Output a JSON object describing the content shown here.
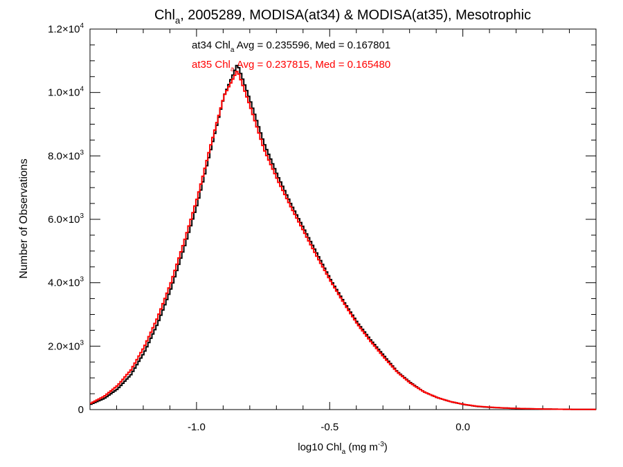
{
  "chart_data": {
    "type": "line",
    "title": {
      "pre": "Chl",
      "sub": "a",
      "post": ", 2005289, MODISA(at34) & MODISA(at35), Mesotrophic"
    },
    "xlabel": {
      "pre": "log10 Chl",
      "sub": "a",
      "mid": " (mg m",
      "sup": "-3",
      "post": ")"
    },
    "ylabel": "Number of Observations",
    "xlim": [
      -1.4,
      0.5
    ],
    "ylim": [
      0,
      12000
    ],
    "x_ticks": [
      {
        "value": -1.0,
        "label": "-1.0"
      },
      {
        "value": -0.5,
        "label": "-0.5"
      },
      {
        "value": 0.0,
        "label": "0.0"
      }
    ],
    "y_ticks": [
      {
        "value": 0,
        "mant": "0",
        "exp": ""
      },
      {
        "value": 2000,
        "mant": "2.0×10",
        "exp": "3"
      },
      {
        "value": 4000,
        "mant": "4.0×10",
        "exp": "3"
      },
      {
        "value": 6000,
        "mant": "6.0×10",
        "exp": "3"
      },
      {
        "value": 8000,
        "mant": "8.0×10",
        "exp": "3"
      },
      {
        "value": 10000,
        "mant": "1.0×10",
        "exp": "4"
      },
      {
        "value": 12000,
        "mant": "1.2×10",
        "exp": "4"
      }
    ],
    "grid": false,
    "series": [
      {
        "name": "at34",
        "color": "#000000",
        "label": {
          "pre": "at34 Chl",
          "sub": "a",
          "post": " Avg = 0.235596, Med = 0.167801"
        },
        "x": [
          -1.4,
          -1.35,
          -1.3,
          -1.25,
          -1.2,
          -1.15,
          -1.1,
          -1.05,
          -1.0,
          -0.95,
          -0.9,
          -0.85,
          -0.8,
          -0.75,
          -0.7,
          -0.65,
          -0.6,
          -0.55,
          -0.5,
          -0.45,
          -0.4,
          -0.35,
          -0.3,
          -0.25,
          -0.2,
          -0.15,
          -0.1,
          -0.05,
          0.0,
          0.05,
          0.1,
          0.15,
          0.2,
          0.25,
          0.3,
          0.35,
          0.4,
          0.45,
          0.5
        ],
        "y": [
          170,
          350,
          650,
          1100,
          1800,
          2700,
          3800,
          5100,
          6500,
          8200,
          9900,
          10900,
          9700,
          8400,
          7400,
          6500,
          5700,
          4900,
          4100,
          3400,
          2750,
          2200,
          1700,
          1200,
          850,
          560,
          380,
          250,
          160,
          100,
          70,
          50,
          35,
          25,
          18,
          12,
          8,
          5,
          3
        ]
      },
      {
        "name": "at35",
        "color": "#ff0000",
        "label": {
          "pre": "at35 Chl",
          "sub": "a",
          "post": " Avg = 0.237815, Med = 0.165480"
        },
        "x": [
          -1.4,
          -1.35,
          -1.3,
          -1.25,
          -1.2,
          -1.15,
          -1.1,
          -1.05,
          -1.0,
          -0.95,
          -0.9,
          -0.85,
          -0.8,
          -0.75,
          -0.7,
          -0.65,
          -0.6,
          -0.55,
          -0.5,
          -0.45,
          -0.4,
          -0.35,
          -0.3,
          -0.25,
          -0.2,
          -0.15,
          -0.1,
          -0.05,
          0.0,
          0.05,
          0.1,
          0.15,
          0.2,
          0.25,
          0.3,
          0.35,
          0.4,
          0.45,
          0.5
        ],
        "y": [
          200,
          420,
          760,
          1250,
          1980,
          2900,
          4000,
          5300,
          6700,
          8350,
          9900,
          10700,
          9500,
          8200,
          7250,
          6400,
          5600,
          4800,
          4050,
          3350,
          2700,
          2150,
          1650,
          1180,
          830,
          560,
          380,
          250,
          165,
          105,
          75,
          52,
          36,
          26,
          18,
          12,
          8,
          5,
          3
        ]
      }
    ]
  }
}
